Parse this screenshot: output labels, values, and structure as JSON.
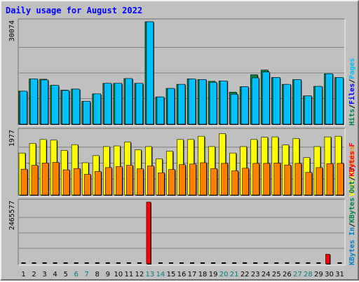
{
  "chart_data": {
    "type": "bar",
    "title": "Daily usage for August 2022",
    "categories": [
      "1",
      "2",
      "3",
      "4",
      "5",
      "6",
      "7",
      "8",
      "9",
      "10",
      "11",
      "12",
      "13",
      "14",
      "15",
      "16",
      "17",
      "18",
      "19",
      "20",
      "21",
      "22",
      "23",
      "24",
      "25",
      "26",
      "27",
      "28",
      "29",
      "30",
      "31"
    ],
    "weekend_days": [
      "6",
      "7",
      "13",
      "14",
      "20",
      "21",
      "27",
      "28"
    ],
    "panels": [
      {
        "id": "top",
        "max_label": "30074",
        "ylim": [
          0,
          30074
        ],
        "series": [
          {
            "name": "Hits",
            "color": "#008040",
            "values": [
              9700,
              13300,
              13200,
              11400,
              10000,
              10300,
              6700,
              8900,
              12000,
              12000,
              13400,
              12000,
              30074,
              8000,
              10500,
              11700,
              13300,
              13100,
              12600,
              12700,
              9400,
              11000,
              14500,
              15900,
              13700,
              11700,
              13100,
              8300,
              11100,
              14800,
              13700
            ]
          },
          {
            "name": "Files",
            "color": "#0000ff",
            "values": [
              0,
              0,
              0,
              0,
              0,
              0,
              0,
              0,
              0,
              0,
              0,
              0,
              0,
              0,
              0,
              0,
              0,
              0,
              0,
              0,
              0,
              0,
              0,
              0,
              0,
              0,
              0,
              0,
              0,
              0,
              0
            ]
          },
          {
            "name": "Pages",
            "color": "#00c0ff",
            "values": [
              9700,
              13300,
              13000,
              11400,
              9900,
              10300,
              6700,
              8900,
              12000,
              12000,
              13400,
              12000,
              30074,
              8000,
              10500,
              11700,
              13300,
              13100,
              12300,
              12700,
              8800,
              11000,
              13600,
              15300,
              13700,
              11700,
              13100,
              8300,
              11100,
              14800,
              13700
            ]
          }
        ]
      },
      {
        "id": "mid",
        "max_label": "1977",
        "ylim": [
          0,
          1977
        ],
        "series": [
          {
            "name": "Visits",
            "color": "#ffff00",
            "values": [
              1300,
              1600,
              1720,
              1700,
              1380,
              1560,
              1000,
              1220,
              1500,
              1520,
              1640,
              1400,
              1500,
              1120,
              1360,
              1720,
              1720,
              1820,
              1500,
              1900,
              1300,
              1500,
              1720,
              1790,
              1800,
              1550,
              1750,
              1160,
              1500,
              1800,
              1820
            ]
          },
          {
            "name": "Sites",
            "color": "#ff8000",
            "values": [
              800,
              920,
              990,
              1010,
              780,
              820,
              640,
              730,
              850,
              880,
              920,
              810,
              900,
              690,
              790,
              940,
              960,
              1000,
              820,
              980,
              750,
              830,
              980,
              980,
              990,
              930,
              980,
              700,
              850,
              970,
              980
            ]
          }
        ]
      },
      {
        "id": "bot",
        "max_label": "2465577",
        "ylim": [
          0,
          2465577
        ],
        "series": [
          {
            "name": "KBytes F",
            "color": "#ff0000",
            "values": [
              0,
              0,
              0,
              0,
              0,
              0,
              0,
              0,
              0,
              0,
              0,
              0,
              2465577,
              0,
              0,
              0,
              0,
              0,
              0,
              0,
              0,
              0,
              0,
              0,
              0,
              0,
              0,
              0,
              0,
              380000,
              0
            ]
          },
          {
            "name": "KBytes In",
            "color": "#0080c0",
            "values": [
              0,
              0,
              0,
              0,
              0,
              0,
              0,
              0,
              0,
              0,
              0,
              0,
              0,
              0,
              0,
              0,
              0,
              0,
              0,
              0,
              0,
              0,
              0,
              0,
              0,
              0,
              0,
              0,
              0,
              0,
              0
            ]
          },
          {
            "name": "KBytes Out",
            "color": "#008040",
            "values": [
              0,
              0,
              0,
              0,
              0,
              0,
              0,
              0,
              0,
              0,
              0,
              0,
              0,
              0,
              0,
              0,
              0,
              0,
              0,
              0,
              0,
              0,
              0,
              0,
              0,
              0,
              0,
              0,
              0,
              0,
              0
            ]
          }
        ]
      }
    ],
    "legend_right": [
      {
        "panel": "top",
        "items": [
          {
            "text": "Hits",
            "color": "#008040"
          },
          {
            "text": "Files",
            "color": "#0000ff"
          },
          {
            "text": "Pages",
            "color": "#00c0ff"
          }
        ]
      },
      {
        "panel": "mid",
        "items": [
          {
            "text": "Visits",
            "color": "#ffff00"
          },
          {
            "text": "Sites",
            "color": "#ff8000"
          }
        ]
      },
      {
        "panel": "bot",
        "items": [
          {
            "text": "KBytes In",
            "color": "#0080c0"
          },
          {
            "text": "KBytes Out",
            "color": "#008040"
          },
          {
            "text": "KBytes F",
            "color": "#ff0000"
          }
        ]
      }
    ],
    "grid": true,
    "colors": {
      "background": "#c0c0c0",
      "title": "#0000ff",
      "weekday_label": "#000000",
      "weekend_label": "#008080",
      "grid": "#808080",
      "bar_shadow": "#000000",
      "zero_marker": "#000000"
    }
  }
}
